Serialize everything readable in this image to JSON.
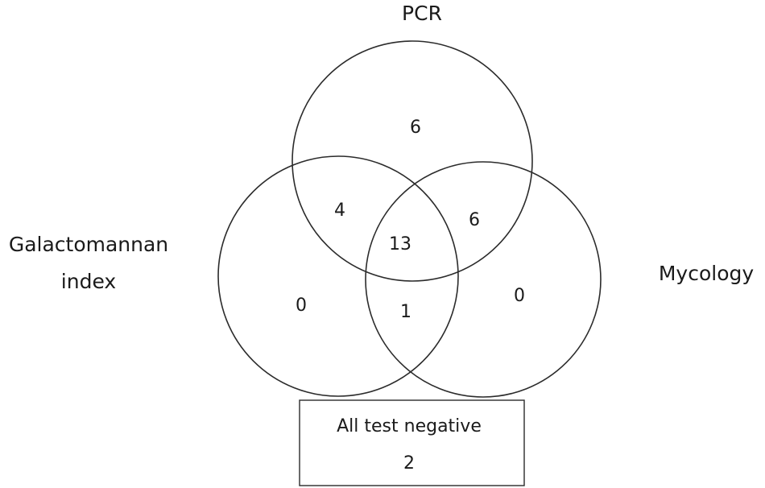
{
  "labels": {
    "pcr": "PCR",
    "galactomannan_line1": "Galactomannan",
    "galactomannan_line2": "index",
    "mycology": "Mycology"
  },
  "regions": {
    "pcr_only": "6",
    "galactomannan_only": "0",
    "mycology_only": "0",
    "pcr_and_galactomannan": "4",
    "pcr_and_mycology": "6",
    "galactomannan_and_mycology": "1",
    "all_three": "13"
  },
  "negative_box": {
    "label": "All test negative",
    "count": "2"
  }
}
